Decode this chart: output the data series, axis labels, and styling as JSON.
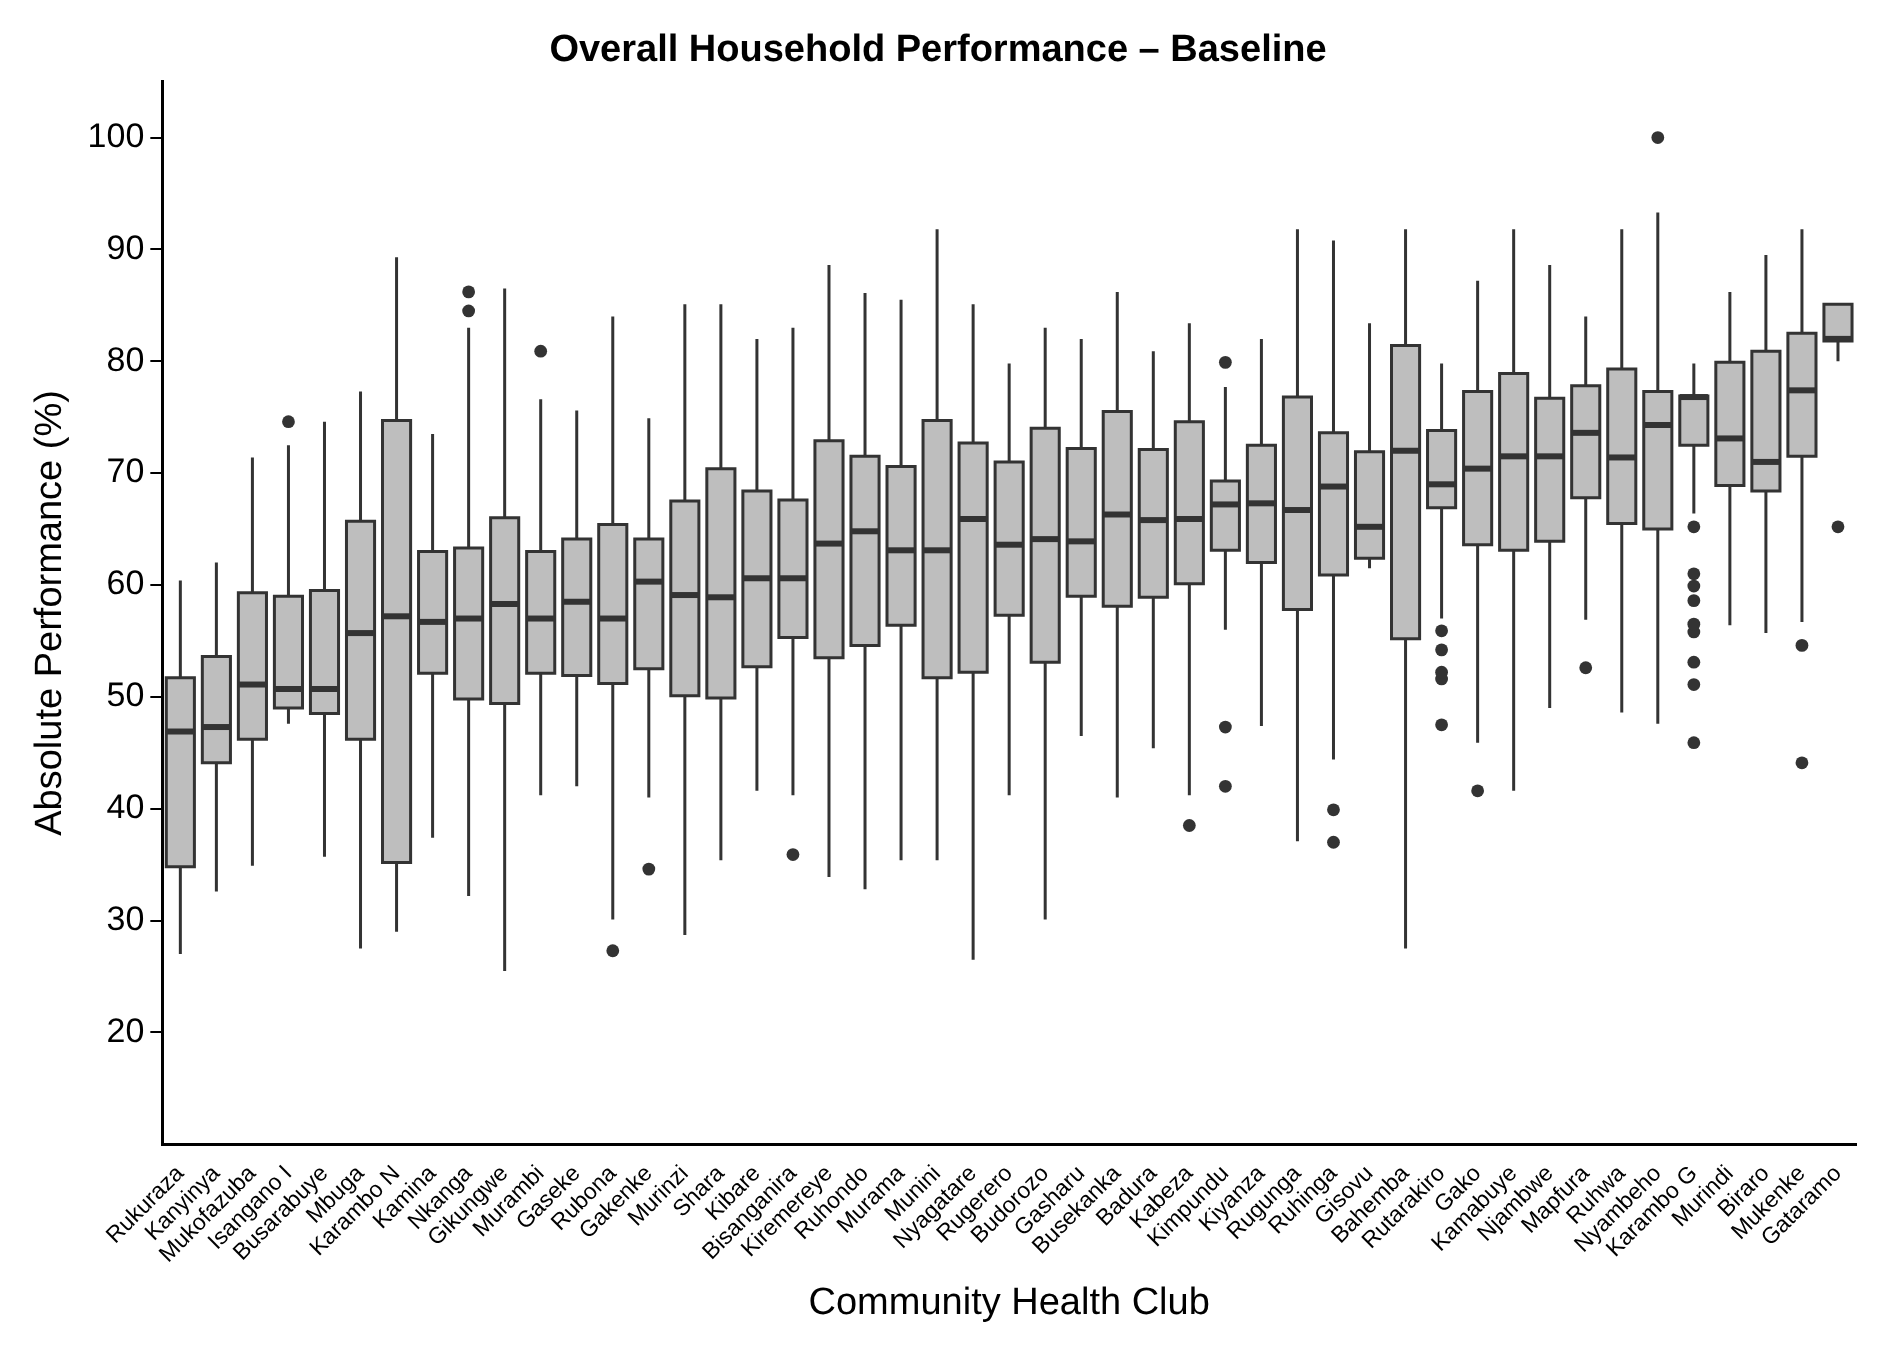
{
  "chart_data": {
    "type": "box",
    "title": "Overall Household Performance – Baseline",
    "xlabel": "Community Health Club",
    "ylabel": "Absolute Performance (%)",
    "color": "#bebebe",
    "grid": false,
    "legend": false,
    "ylim": [
      10,
      105
    ],
    "yticks": [
      20,
      30,
      40,
      50,
      60,
      70,
      80,
      90,
      100
    ],
    "categories": [
      "Rukuraza",
      "Kanyinya",
      "Mukofazuba",
      "Isangano I",
      "Busarabuye",
      "Mbuga",
      "Karambo N",
      "Kamina",
      "Nkanga",
      "Gikungwe",
      "Murambi",
      "Gaseke",
      "Rubona",
      "Gakenke",
      "Murinzi",
      "Shara",
      "Kibare",
      "Bisanganira",
      "Kiremereye",
      "Ruhondo",
      "Murama",
      "Munini",
      "Nyagatare",
      "Rugerero",
      "Budorozo",
      "Gasharu",
      "Busekanka",
      "Badura",
      "Kabeza",
      "Kimpundu",
      "Kiyanza",
      "Rugunga",
      "Ruhinga",
      "Gisovu",
      "Bahemba",
      "Rutarakiro",
      "Gako",
      "Kamabuye",
      "Njambwe",
      "Mapfura",
      "Ruhwa",
      "Nyambeho",
      "Karambo G",
      "Murindi",
      "Biraro",
      "Mukenke",
      "Gataramo"
    ],
    "boxes": [
      {
        "low": 27,
        "q1": 34.8,
        "median": 46.9,
        "q3": 51.7,
        "high": 60.4
      },
      {
        "low": 32.6,
        "q1": 44.1,
        "median": 47.3,
        "q3": 53.6,
        "high": 62
      },
      {
        "low": 34.9,
        "q1": 46.2,
        "median": 51.1,
        "q3": 59.3,
        "high": 71.4
      },
      {
        "low": 47.6,
        "q1": 49,
        "median": 50.7,
        "q3": 59,
        "high": 72.5,
        "outliers": [
          74.6
        ]
      },
      {
        "low": 35.7,
        "q1": 48.5,
        "median": 50.7,
        "q3": 59.5,
        "high": 74.6
      },
      {
        "low": 27.5,
        "q1": 46.2,
        "median": 55.7,
        "q3": 65.7,
        "high": 77.3
      },
      {
        "low": 29,
        "q1": 35.2,
        "median": 57.2,
        "q3": 74.7,
        "high": 89.3
      },
      {
        "low": 37.4,
        "q1": 52.1,
        "median": 56.7,
        "q3": 63,
        "high": 73.5
      },
      {
        "low": 32.2,
        "q1": 49.8,
        "median": 57,
        "q3": 63.3,
        "high": 83,
        "outliers": [
          84.5,
          86.2
        ]
      },
      {
        "low": 25.5,
        "q1": 49.4,
        "median": 58.3,
        "q3": 66,
        "high": 86.5
      },
      {
        "low": 41.2,
        "q1": 52.1,
        "median": 57,
        "q3": 63,
        "high": 76.6,
        "outliers": [
          80.9
        ]
      },
      {
        "low": 42,
        "q1": 51.9,
        "median": 58.5,
        "q3": 64.1,
        "high": 75.6
      },
      {
        "low": 30.1,
        "q1": 51.2,
        "median": 57,
        "q3": 65.4,
        "high": 84,
        "outliers": [
          27.3
        ]
      },
      {
        "low": 41,
        "q1": 52.5,
        "median": 60.3,
        "q3": 64.1,
        "high": 74.9,
        "outliers": [
          34.6
        ]
      },
      {
        "low": 28.7,
        "q1": 50.1,
        "median": 59.1,
        "q3": 67.5,
        "high": 85.1
      },
      {
        "low": 35.4,
        "q1": 49.9,
        "median": 58.9,
        "q3": 70.4,
        "high": 85.1
      },
      {
        "low": 41.6,
        "q1": 52.7,
        "median": 60.6,
        "q3": 68.4,
        "high": 82
      },
      {
        "low": 41.2,
        "q1": 55.3,
        "median": 60.6,
        "q3": 67.6,
        "high": 83,
        "outliers": [
          35.9
        ]
      },
      {
        "low": 33.9,
        "q1": 53.5,
        "median": 63.7,
        "q3": 72.9,
        "high": 88.6
      },
      {
        "low": 32.8,
        "q1": 54.6,
        "median": 64.8,
        "q3": 71.5,
        "high": 86.1
      },
      {
        "low": 35.4,
        "q1": 56.4,
        "median": 63.1,
        "q3": 70.6,
        "high": 85.5
      },
      {
        "low": 35.4,
        "q1": 51.7,
        "median": 63.1,
        "q3": 74.7,
        "high": 91.8
      },
      {
        "low": 26.5,
        "q1": 52.2,
        "median": 65.9,
        "q3": 72.7,
        "high": 85.1
      },
      {
        "low": 41.2,
        "q1": 57.3,
        "median": 63.6,
        "q3": 71,
        "high": 79.8
      },
      {
        "low": 30.1,
        "q1": 53.1,
        "median": 64.1,
        "q3": 74,
        "high": 83
      },
      {
        "low": 46.5,
        "q1": 59,
        "median": 63.9,
        "q3": 72.2,
        "high": 82
      },
      {
        "low": 41,
        "q1": 58.1,
        "median": 66.3,
        "q3": 75.5,
        "high": 86.2
      },
      {
        "low": 45.4,
        "q1": 58.9,
        "median": 65.8,
        "q3": 72.1,
        "high": 80.9
      },
      {
        "low": 41.2,
        "q1": 60.1,
        "median": 65.9,
        "q3": 74.6,
        "high": 83.4,
        "outliers": [
          38.5
        ]
      },
      {
        "low": 56,
        "q1": 63.1,
        "median": 67.2,
        "q3": 69.3,
        "high": 77.7,
        "outliers": [
          79.9,
          47.3,
          42
        ]
      },
      {
        "low": 47.4,
        "q1": 62,
        "median": 67.3,
        "q3": 72.5,
        "high": 82
      },
      {
        "low": 37.1,
        "q1": 57.8,
        "median": 66.7,
        "q3": 76.8,
        "high": 91.8
      },
      {
        "low": 44.4,
        "q1": 60.9,
        "median": 68.8,
        "q3": 73.6,
        "high": 90.8,
        "outliers": [
          39.9,
          37
        ]
      },
      {
        "low": 61.5,
        "q1": 62.4,
        "median": 65.2,
        "q3": 71.9,
        "high": 83.4
      },
      {
        "low": 27.5,
        "q1": 55.2,
        "median": 72,
        "q3": 81.4,
        "high": 91.8
      },
      {
        "low": 57,
        "q1": 66.9,
        "median": 69,
        "q3": 73.8,
        "high": 79.8,
        "outliers": [
          55.9,
          54.2,
          52.2,
          51.6,
          47.5
        ]
      },
      {
        "low": 45.9,
        "q1": 63.6,
        "median": 70.4,
        "q3": 77.3,
        "high": 87.2,
        "outliers": [
          41.6
        ]
      },
      {
        "low": 41.6,
        "q1": 63.1,
        "median": 71.5,
        "q3": 78.9,
        "high": 91.8
      },
      {
        "low": 49,
        "q1": 63.9,
        "median": 71.5,
        "q3": 76.7,
        "high": 88.6
      },
      {
        "low": 56.9,
        "q1": 67.8,
        "median": 73.6,
        "q3": 77.8,
        "high": 84,
        "outliers": [
          52.6
        ]
      },
      {
        "low": 48.6,
        "q1": 65.5,
        "median": 71.4,
        "q3": 79.3,
        "high": 91.8
      },
      {
        "low": 47.6,
        "q1": 65,
        "median": 74.3,
        "q3": 77.3,
        "high": 93.3,
        "outliers": [
          100
        ]
      },
      {
        "low": 66.4,
        "q1": 72.5,
        "median": 76.8,
        "q3": 76.9,
        "high": 79.8,
        "outliers": [
          65.2,
          61,
          59.9,
          58.6,
          56.5,
          55.8,
          53.1,
          51.1,
          45.9
        ]
      },
      {
        "low": 56.4,
        "q1": 68.9,
        "median": 73.1,
        "q3": 79.9,
        "high": 86.2
      },
      {
        "low": 55.7,
        "q1": 68.4,
        "median": 71,
        "q3": 80.9,
        "high": 89.5
      },
      {
        "low": 56.7,
        "q1": 71.5,
        "median": 77.4,
        "q3": 82.5,
        "high": 91.8,
        "outliers": [
          54.6,
          44.1
        ]
      },
      {
        "low": 80,
        "q1": 81.8,
        "median": 82,
        "q3": 85.1,
        "high": 85.1,
        "outliers": [
          65.2
        ]
      }
    ]
  }
}
